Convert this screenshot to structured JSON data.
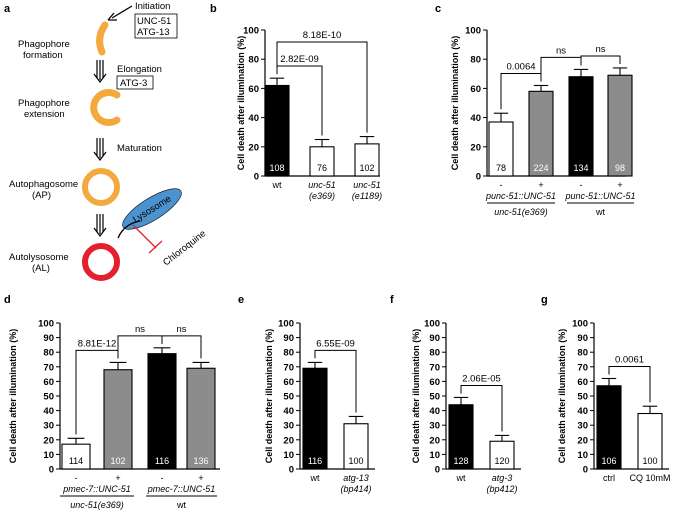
{
  "panels": {
    "a": "a",
    "b": "b",
    "c": "c",
    "d": "d",
    "e": "e",
    "f": "f",
    "g": "g"
  },
  "diagram": {
    "initiation": "Initiation",
    "unc51": "UNC-51",
    "atg13": "ATG-13",
    "phagophore_formation_1": "Phagophore",
    "phagophore_formation_2": "formation",
    "elongation": "Elongation",
    "atg3": "ATG-3",
    "phagophore_extension_1": "Phagophore",
    "phagophore_extension_2": "extension",
    "maturation": "Maturation",
    "autophagosome": "Autophagosome",
    "ap": "(AP)",
    "lysosome": "Lysosome",
    "chloroquine": "Chloroquine",
    "autolysosome": "Autolysosome",
    "al": "(AL)",
    "colors": {
      "orange": "#F4A93C",
      "red": "#E4202E",
      "lysosome": "#4B93CF"
    }
  },
  "colors": {
    "black": "#000000",
    "white": "#ffffff",
    "gray": "#8c8c8c"
  },
  "chart_data": [
    {
      "panel": "b",
      "type": "bar",
      "ylabel": "Cell death after illumination (%)",
      "ylim": [
        0,
        100
      ],
      "yticks": [
        0,
        20,
        40,
        60,
        80,
        100
      ],
      "categories": [
        {
          "lines": [
            "wt"
          ],
          "italic": false
        },
        {
          "lines": [
            "unc-51",
            "(e369)"
          ],
          "italic": true
        },
        {
          "lines": [
            "unc-51",
            "(e1189)"
          ],
          "italic": true
        }
      ],
      "values": [
        62,
        20,
        22
      ],
      "errors": [
        5,
        5,
        5
      ],
      "colors": [
        "black",
        "white",
        "white"
      ],
      "n": [
        "108",
        "76",
        "102"
      ],
      "comparisons": [
        {
          "from": 0,
          "to": 1,
          "label": "2.82E-09",
          "level": 1
        },
        {
          "from": 0,
          "to": 2,
          "label": "8.18E-10",
          "level": 2
        }
      ]
    },
    {
      "panel": "c",
      "type": "bar",
      "ylabel": "Cell death after illumination (%)",
      "ylim": [
        0,
        100
      ],
      "yticks": [
        0,
        20,
        40,
        60,
        80,
        100
      ],
      "categories": [
        {
          "lines": [
            "-"
          ]
        },
        {
          "lines": [
            "+"
          ]
        },
        {
          "lines": [
            "-"
          ]
        },
        {
          "lines": [
            "+"
          ]
        }
      ],
      "values": [
        37,
        58,
        68,
        69
      ],
      "errors": [
        6,
        4,
        5,
        5
      ],
      "colors": [
        "white",
        "gray",
        "black",
        "gray"
      ],
      "n": [
        "78",
        "224",
        "134",
        "98"
      ],
      "transgene": "punc-51::UNC-51",
      "groups": [
        {
          "label": "unc-51(e369)",
          "italic": true
        },
        {
          "label": "wt",
          "italic": false
        }
      ],
      "comparisons": [
        {
          "from": 0,
          "to": 1,
          "label": "0.0064",
          "level": 1
        },
        {
          "from": 1,
          "to": 2,
          "label": "ns",
          "level": 1
        },
        {
          "from": 2,
          "to": 3,
          "label": "ns",
          "level": 1
        }
      ]
    },
    {
      "panel": "d",
      "type": "bar",
      "ylabel": "Cell death after illumination (%)",
      "ylim": [
        0,
        100
      ],
      "yticks": [
        0,
        10,
        20,
        30,
        40,
        50,
        60,
        70,
        80,
        90,
        100
      ],
      "categories": [
        {
          "lines": [
            "-"
          ]
        },
        {
          "lines": [
            "+"
          ]
        },
        {
          "lines": [
            "-"
          ]
        },
        {
          "lines": [
            "+"
          ]
        }
      ],
      "values": [
        17,
        68,
        79,
        69
      ],
      "errors": [
        4,
        5,
        4,
        4
      ],
      "colors": [
        "white",
        "gray",
        "black",
        "gray"
      ],
      "n": [
        "114",
        "102",
        "116",
        "136"
      ],
      "transgene": "pmec-7::UNC-51",
      "groups": [
        {
          "label": "unc-51(e369)",
          "italic": true
        },
        {
          "label": "wt",
          "italic": false
        }
      ],
      "comparisons": [
        {
          "from": 0,
          "to": 1,
          "label": "8.81E-12",
          "level": 1
        },
        {
          "from": 1,
          "to": 2,
          "label": "ns",
          "level": 1
        },
        {
          "from": 2,
          "to": 3,
          "label": "ns",
          "level": 1
        }
      ]
    },
    {
      "panel": "e",
      "type": "bar",
      "ylabel": "Cell death after illumination (%)",
      "ylim": [
        0,
        100
      ],
      "yticks": [
        0,
        10,
        20,
        30,
        40,
        50,
        60,
        70,
        80,
        90,
        100
      ],
      "categories": [
        {
          "lines": [
            "wt"
          ],
          "italic": false
        },
        {
          "lines": [
            "atg-13",
            "(bp414)"
          ],
          "italic": true
        }
      ],
      "values": [
        69,
        31
      ],
      "errors": [
        4,
        5
      ],
      "colors": [
        "black",
        "white"
      ],
      "n": [
        "116",
        "100"
      ],
      "comparisons": [
        {
          "from": 0,
          "to": 1,
          "label": "6.55E-09",
          "level": 1
        }
      ]
    },
    {
      "panel": "f",
      "type": "bar",
      "ylabel": "Cell death after illumination (%)",
      "ylim": [
        0,
        100
      ],
      "yticks": [
        0,
        10,
        20,
        30,
        40,
        50,
        60,
        70,
        80,
        90,
        100
      ],
      "categories": [
        {
          "lines": [
            "wt"
          ],
          "italic": false
        },
        {
          "lines": [
            "atg-3",
            "(bp412)"
          ],
          "italic": true
        }
      ],
      "values": [
        44,
        19
      ],
      "errors": [
        5,
        4
      ],
      "colors": [
        "black",
        "white"
      ],
      "n": [
        "128",
        "120"
      ],
      "comparisons": [
        {
          "from": 0,
          "to": 1,
          "label": "2.06E-05",
          "level": 1
        }
      ]
    },
    {
      "panel": "g",
      "type": "bar",
      "ylabel": "Cell death after illumination (%)",
      "ylim": [
        0,
        100
      ],
      "yticks": [
        0,
        10,
        20,
        30,
        40,
        50,
        60,
        70,
        80,
        90,
        100
      ],
      "categories": [
        {
          "lines": [
            "ctrl"
          ],
          "italic": false
        },
        {
          "lines": [
            "CQ 10mM"
          ],
          "italic": false
        }
      ],
      "values": [
        57,
        38
      ],
      "errors": [
        5,
        5
      ],
      "colors": [
        "black",
        "white"
      ],
      "n": [
        "106",
        "100"
      ],
      "comparisons": [
        {
          "from": 0,
          "to": 1,
          "label": "0.0061",
          "level": 1
        }
      ]
    }
  ]
}
